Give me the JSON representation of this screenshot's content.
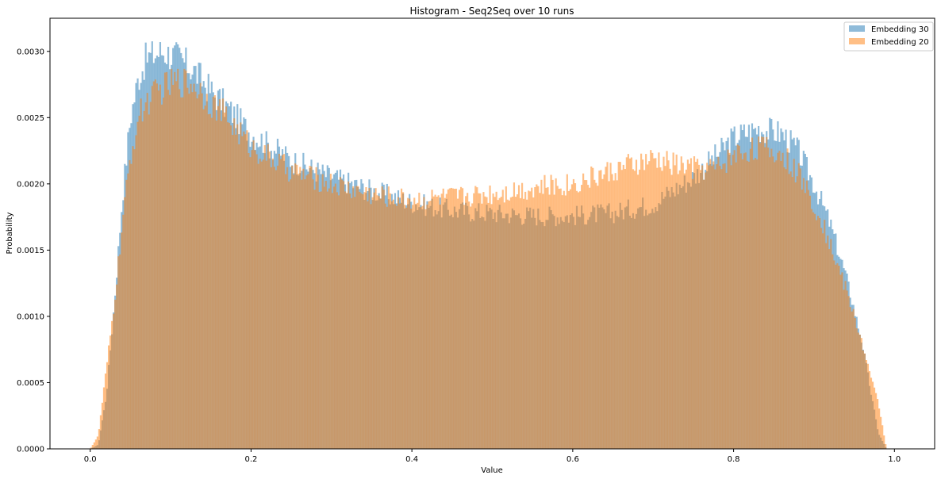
{
  "chart_data": {
    "type": "histogram",
    "title": "Histogram - Seq2Seq over 10 runs",
    "xlabel": "Value",
    "ylabel": "Probability",
    "xlim": [
      -0.05,
      1.05
    ],
    "ylim": [
      0,
      0.00325
    ],
    "xticks": [
      "0.0",
      "0.2",
      "0.4",
      "0.6",
      "0.8",
      "1.0"
    ],
    "yticks": [
      "0.0000",
      "0.0005",
      "0.0010",
      "0.0015",
      "0.0020",
      "0.0025",
      "0.0030"
    ],
    "grid": false,
    "legend_position": "top-right",
    "bin_width": 0.002,
    "alpha": 0.5,
    "series": [
      {
        "name": "Embedding 30",
        "color": "#1f77b4",
        "profile": [
          [
            0.0,
            0
          ],
          [
            0.01,
            3e-05
          ],
          [
            0.02,
            0.0004
          ],
          [
            0.03,
            0.0011
          ],
          [
            0.04,
            0.0019
          ],
          [
            0.05,
            0.0025
          ],
          [
            0.06,
            0.0028
          ],
          [
            0.07,
            0.00295
          ],
          [
            0.09,
            0.003
          ],
          [
            0.11,
            0.00295
          ],
          [
            0.13,
            0.00285
          ],
          [
            0.15,
            0.0027
          ],
          [
            0.17,
            0.00258
          ],
          [
            0.2,
            0.00238
          ],
          [
            0.25,
            0.00218
          ],
          [
            0.3,
            0.00205
          ],
          [
            0.35,
            0.00195
          ],
          [
            0.4,
            0.00186
          ],
          [
            0.45,
            0.0018
          ],
          [
            0.5,
            0.00178
          ],
          [
            0.55,
            0.00176
          ],
          [
            0.6,
            0.00176
          ],
          [
            0.65,
            0.00178
          ],
          [
            0.7,
            0.00185
          ],
          [
            0.75,
            0.00205
          ],
          [
            0.78,
            0.00222
          ],
          [
            0.8,
            0.00235
          ],
          [
            0.83,
            0.00242
          ],
          [
            0.86,
            0.00238
          ],
          [
            0.88,
            0.00225
          ],
          [
            0.9,
            0.002
          ],
          [
            0.92,
            0.0017
          ],
          [
            0.94,
            0.0013
          ],
          [
            0.96,
            0.0008
          ],
          [
            0.97,
            0.00045
          ],
          [
            0.98,
            0.00012
          ],
          [
            0.99,
            0
          ]
        ]
      },
      {
        "name": "Embedding 20",
        "color": "#ff7f0e",
        "profile": [
          [
            0.0,
            0
          ],
          [
            0.01,
            0.0001
          ],
          [
            0.02,
            0.0006
          ],
          [
            0.03,
            0.0011
          ],
          [
            0.04,
            0.0017
          ],
          [
            0.05,
            0.0022
          ],
          [
            0.06,
            0.0025
          ],
          [
            0.07,
            0.00262
          ],
          [
            0.09,
            0.00272
          ],
          [
            0.11,
            0.00278
          ],
          [
            0.13,
            0.00275
          ],
          [
            0.15,
            0.00262
          ],
          [
            0.17,
            0.0025
          ],
          [
            0.2,
            0.00228
          ],
          [
            0.25,
            0.0021
          ],
          [
            0.3,
            0.002
          ],
          [
            0.35,
            0.00192
          ],
          [
            0.4,
            0.00188
          ],
          [
            0.45,
            0.0019
          ],
          [
            0.5,
            0.00193
          ],
          [
            0.55,
            0.00197
          ],
          [
            0.6,
            0.002
          ],
          [
            0.65,
            0.0021
          ],
          [
            0.7,
            0.00218
          ],
          [
            0.75,
            0.00212
          ],
          [
            0.78,
            0.00212
          ],
          [
            0.8,
            0.00222
          ],
          [
            0.83,
            0.00228
          ],
          [
            0.86,
            0.00222
          ],
          [
            0.88,
            0.00208
          ],
          [
            0.9,
            0.00185
          ],
          [
            0.92,
            0.00155
          ],
          [
            0.94,
            0.0012
          ],
          [
            0.96,
            0.0008
          ],
          [
            0.97,
            0.00055
          ],
          [
            0.98,
            0.00035
          ],
          [
            0.99,
            0
          ]
        ]
      }
    ]
  }
}
